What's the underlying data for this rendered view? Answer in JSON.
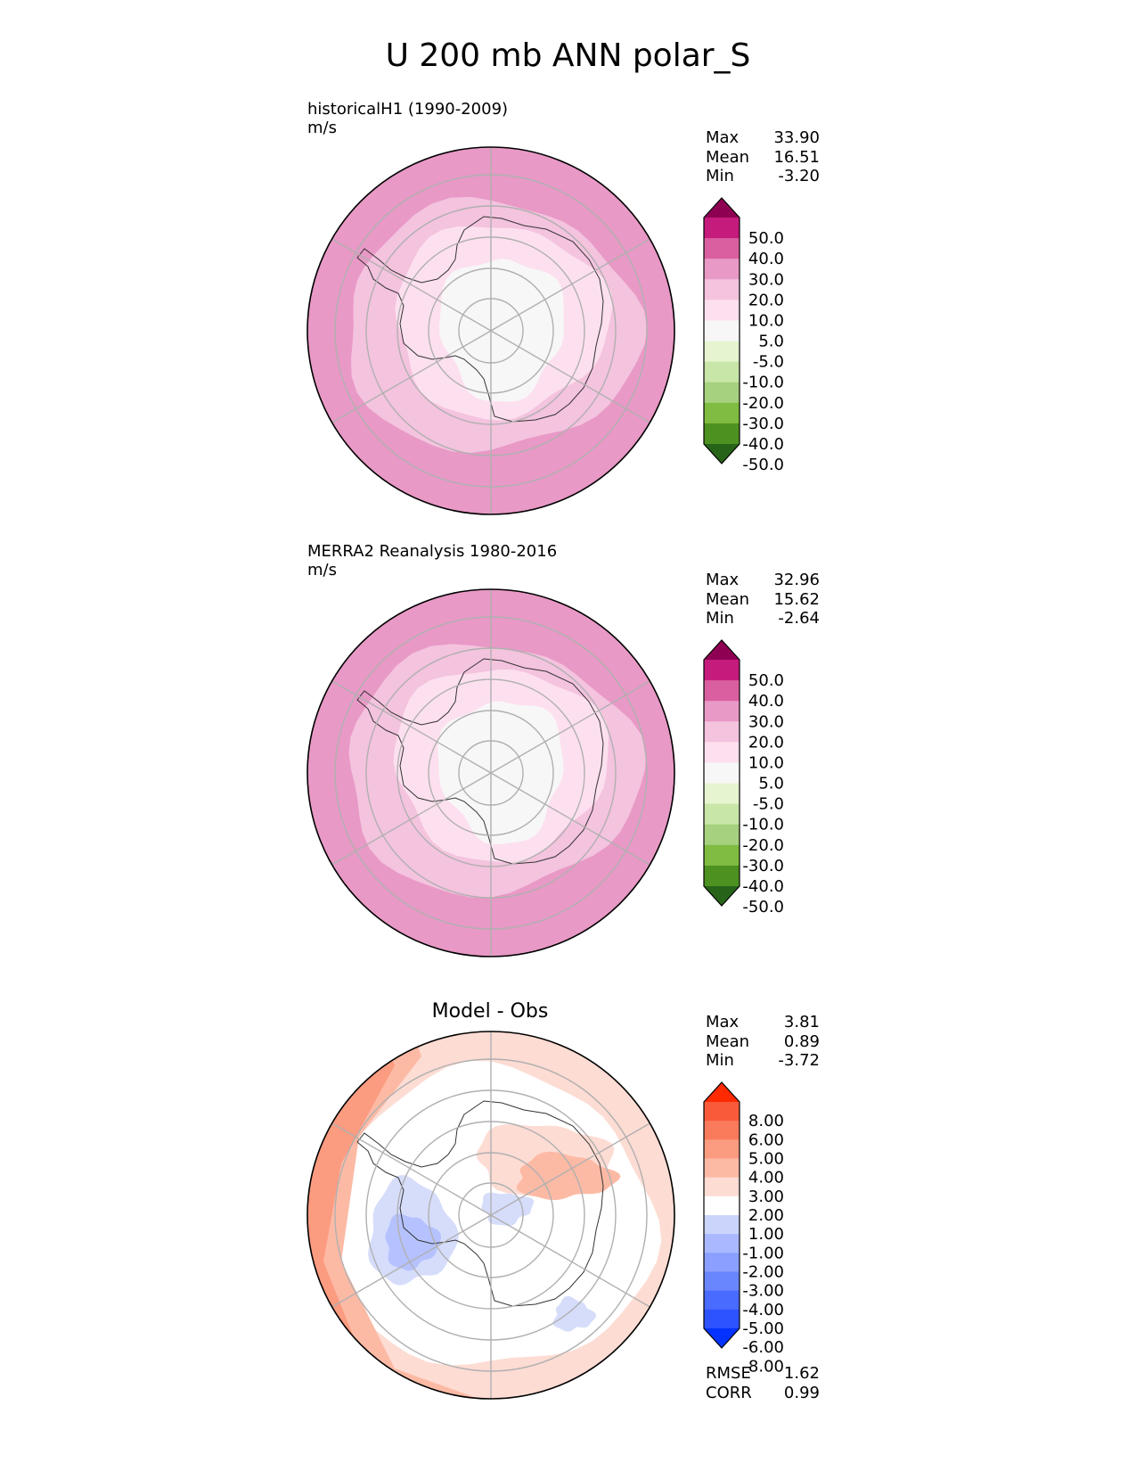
{
  "title": "U 200 mb ANN polar_S",
  "panels": [
    {
      "id": "test",
      "title_line1": "historicalH1 (1990-2009)",
      "title_line2": "m/s",
      "stats": [
        {
          "label": "Max",
          "value": "33.90"
        },
        {
          "label": "Mean",
          "value": "16.51"
        },
        {
          "label": "Min",
          "value": "-3.20"
        }
      ],
      "colorbar": {
        "colors": [
          "#276419",
          "#4d9221",
          "#7fbc41",
          "#b8e186",
          "#e6f5d0",
          "#f7f7f7",
          "#fde0ef",
          "#f1b6da",
          "#de77ae",
          "#c51b7d",
          "#8e0152",
          "#8e0152",
          "#8e0152",
          "#8e0152"
        ],
        "labels": [
          "50.0",
          "40.0",
          "30.0",
          "20.0",
          "10.0",
          "5.0",
          "-5.0",
          "-10.0",
          "-20.0",
          "-30.0",
          "-40.0",
          "-50.0"
        ]
      }
    },
    {
      "id": "ref",
      "title_line1": "MERRA2 Reanalysis 1980-2016",
      "title_line2": "m/s",
      "stats": [
        {
          "label": "Max",
          "value": "32.96"
        },
        {
          "label": "Mean",
          "value": "15.62"
        },
        {
          "label": "Min",
          "value": "-2.64"
        }
      ],
      "colorbar": {
        "labels": [
          "50.0",
          "40.0",
          "30.0",
          "20.0",
          "10.0",
          "5.0",
          "-5.0",
          "-10.0",
          "-20.0",
          "-30.0",
          "-40.0",
          "-50.0"
        ]
      }
    },
    {
      "id": "diff",
      "title_center": "Model - Obs",
      "stats": [
        {
          "label": "Max",
          "value": "3.81"
        },
        {
          "label": "Mean",
          "value": "0.89"
        },
        {
          "label": "Min",
          "value": "-3.72"
        }
      ],
      "extra_stats": [
        {
          "label": "RMSE",
          "value": "1.62"
        },
        {
          "label": "CORR",
          "value": "0.99"
        }
      ],
      "colorbar": {
        "labels": [
          "8.00",
          "6.00",
          "5.00",
          "4.00",
          "3.00",
          "2.00",
          "1.00",
          "-1.00",
          "-2.00",
          "-3.00",
          "-4.00",
          "-5.00",
          "-6.00",
          "-8.00"
        ]
      }
    }
  ],
  "chart_data": [
    {
      "type": "heatmap",
      "title": "historicalH1 (1990-2009)",
      "projection": "south polar stereographic",
      "units": "m/s",
      "contour_levels": [
        -50,
        -40,
        -30,
        -20,
        -10,
        -5,
        5,
        10,
        20,
        30,
        40,
        50
      ],
      "colormap": [
        "#276419",
        "#4d9221",
        "#7fbc41",
        "#b8e186",
        "#d9f0c0",
        "#f7f7f7",
        "#fde0ef",
        "#f4c3de",
        "#e899c6",
        "#d95fa0",
        "#c51b7d",
        "#8e0152"
      ],
      "max": 33.9,
      "mean": 16.51,
      "min": -3.2
    },
    {
      "type": "heatmap",
      "title": "MERRA2 Reanalysis 1980-2016",
      "projection": "south polar stereographic",
      "units": "m/s",
      "contour_levels": [
        -50,
        -40,
        -30,
        -20,
        -10,
        -5,
        5,
        10,
        20,
        30,
        40,
        50
      ],
      "max": 32.96,
      "mean": 15.62,
      "min": -2.64
    },
    {
      "type": "heatmap",
      "title": "Model - Obs",
      "projection": "south polar stereographic",
      "contour_levels": [
        -8,
        -6,
        -5,
        -4,
        -3,
        -2,
        -1,
        1,
        2,
        3,
        4,
        5,
        6,
        8
      ],
      "colormap": [
        "#0433ff",
        "#3a5cff",
        "#5b78ff",
        "#7b93ff",
        "#97a9ff",
        "#b5c2ff",
        "#d6ddfb",
        "#ffffff",
        "#fddcd3",
        "#fcbaa5",
        "#fb9b80",
        "#fa7a5c",
        "#f85a3a",
        "#ff2a00"
      ],
      "max": 3.81,
      "mean": 0.89,
      "min": -3.72,
      "rmse": 1.62,
      "corr": 0.99
    }
  ],
  "colors": {
    "pos1": "#fde0ef",
    "pos2": "#f4c3de",
    "pos3": "#e899c6",
    "pos4": "#d95fa0",
    "neutral": "#f7f7f7",
    "diff_pos1": "#fddcd3",
    "diff_pos2": "#fcbaa5",
    "diff_pos3": "#fb9b80",
    "diff_neg1": "#d6ddfb",
    "diff_neg2": "#b5c2ff"
  }
}
